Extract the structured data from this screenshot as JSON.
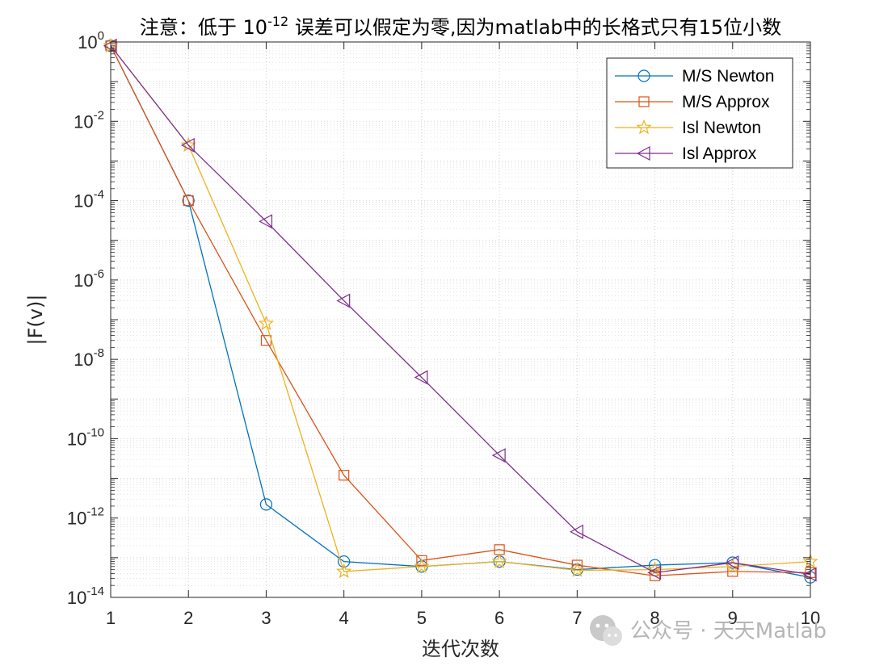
{
  "chart_data": {
    "type": "line",
    "title": {
      "prefix": "注意：低于 10",
      "exponent": "-12",
      "suffix": " 误差可以假定为零,因为matlab中的长格式只有15位小数"
    },
    "xlabel": "迭代次数",
    "ylabel": "|F(v)|",
    "yscale": "log",
    "xlim": [
      1,
      10
    ],
    "ylim_exp": [
      -14,
      0
    ],
    "x": [
      1,
      2,
      3,
      4,
      5,
      6,
      7,
      8,
      9,
      10
    ],
    "xtick_labels": [
      "1",
      "2",
      "3",
      "4",
      "5",
      "6",
      "7",
      "8",
      "9",
      "10"
    ],
    "ytick_labels": [
      {
        "base": "10",
        "exp": "-14"
      },
      {
        "base": "10",
        "exp": "-12"
      },
      {
        "base": "10",
        "exp": "-10"
      },
      {
        "base": "10",
        "exp": "-8"
      },
      {
        "base": "10",
        "exp": "-6"
      },
      {
        "base": "10",
        "exp": "-4"
      },
      {
        "base": "10",
        "exp": "-2"
      },
      {
        "base": "10",
        "exp": "0"
      }
    ],
    "grid": true,
    "legend_position": "top-right",
    "series": [
      {
        "name": "M/S Newton",
        "color": "#0072BD",
        "marker": "circle",
        "values": [
          0.8,
          0.0001,
          2.2e-12,
          8e-14,
          6e-14,
          8e-14,
          5e-14,
          6.5e-14,
          7.5e-14,
          3.2e-14
        ]
      },
      {
        "name": "M/S Approx",
        "color": "#D95319",
        "marker": "square",
        "values": [
          0.8,
          0.0001,
          3e-08,
          1.2e-11,
          8.5e-14,
          1.6e-13,
          6.5e-14,
          3.5e-14,
          4.5e-14,
          4.2e-14
        ]
      },
      {
        "name": "Isl Newton",
        "color": "#EDB120",
        "marker": "star",
        "values": [
          0.8,
          0.0025,
          8e-08,
          4.5e-14,
          6e-14,
          8e-14,
          4.8e-14,
          5e-14,
          6e-14,
          8e-14
        ]
      },
      {
        "name": "Isl Approx",
        "color": "#7E2F8E",
        "marker": "triangle-left",
        "values": [
          0.8,
          0.0025,
          3e-05,
          3e-07,
          3.5e-09,
          3.8e-11,
          4.5e-13,
          4.2e-14,
          7.5e-14,
          3.8e-14
        ]
      }
    ]
  },
  "watermark": {
    "text": "公众号 · 天天Matlab",
    "icon": "wechat-icon"
  }
}
